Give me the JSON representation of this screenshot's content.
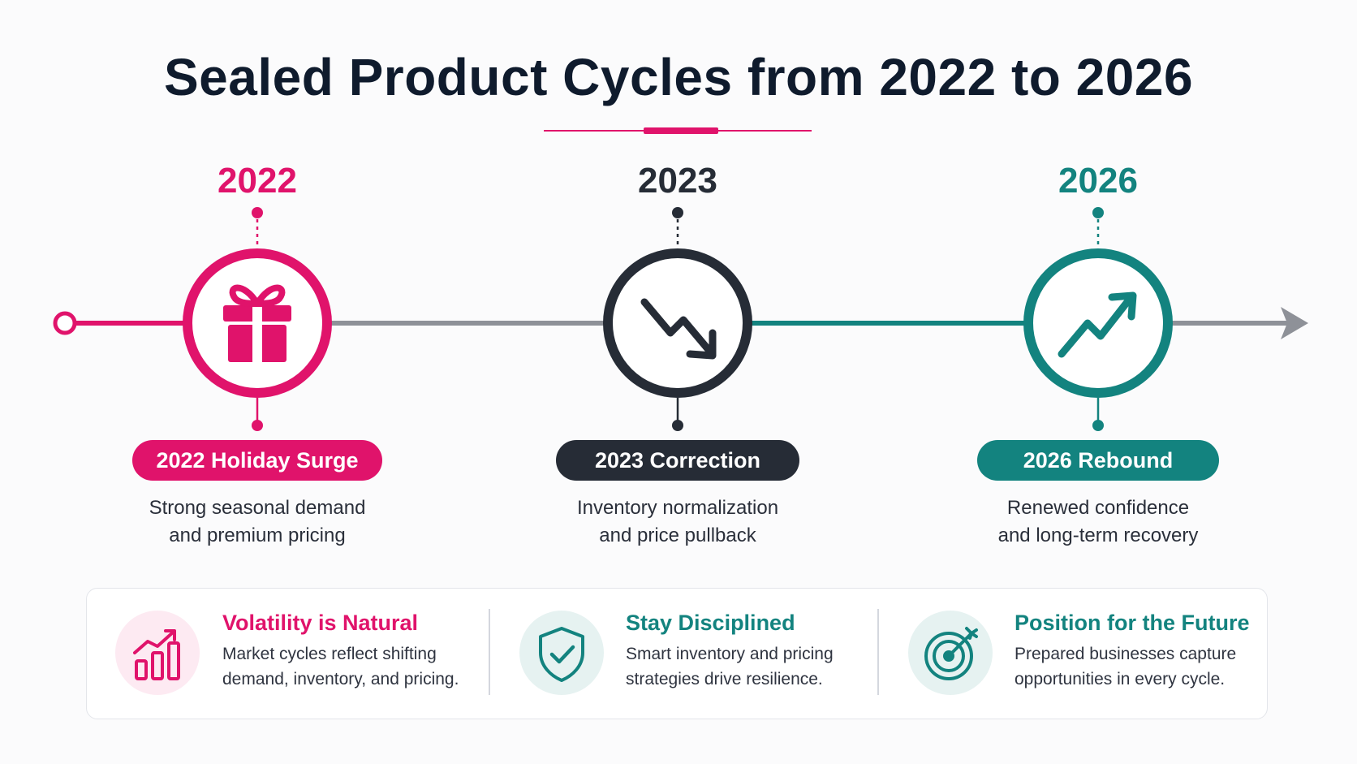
{
  "title": "Sealed Product Cycles from 2022 to 2026",
  "colors": {
    "pink": "#e0136b",
    "dark": "#262c36",
    "teal": "#13837f",
    "gray_line": "#8e9198"
  },
  "milestones": [
    {
      "year": "2022",
      "label": "2022 Holiday Surge",
      "desc_line1": "Strong seasonal demand",
      "desc_line2": "and premium pricing",
      "icon": "gift-icon"
    },
    {
      "year": "2023",
      "label": "2023 Correction",
      "desc_line1": "Inventory normalization",
      "desc_line2": "and price pullback",
      "icon": "trend-down-icon"
    },
    {
      "year": "2026",
      "label": "2026 Rebound",
      "desc_line1": "Renewed confidence",
      "desc_line2": "and long-term recovery",
      "icon": "trend-up-icon"
    }
  ],
  "tips": [
    {
      "title": "Volatility is Natural",
      "line1": "Market cycles reflect shifting",
      "line2": "demand, inventory, and pricing.",
      "icon": "bar-chart-growth-icon"
    },
    {
      "title": "Stay Disciplined",
      "line1": "Smart inventory and pricing",
      "line2": "strategies drive resilience.",
      "icon": "shield-check-icon"
    },
    {
      "title": "Position for the Future",
      "line1": "Prepared businesses capture",
      "line2": "opportunities in every cycle.",
      "icon": "target-arrow-icon"
    }
  ]
}
